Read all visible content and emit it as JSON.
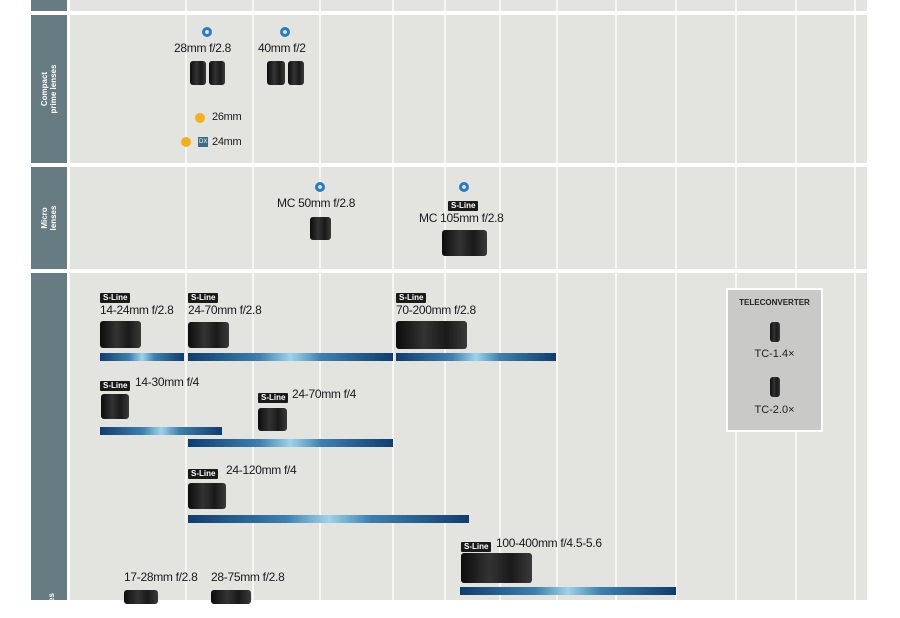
{
  "categories": [
    {
      "label": "Compact prime lenses"
    },
    {
      "label": "Micro lenses"
    },
    {
      "label": "lenses"
    }
  ],
  "badges": {
    "s_line": "S-Line",
    "dx": "DX"
  },
  "compact": {
    "lenses": [
      {
        "label": "28mm f/2.8"
      },
      {
        "label": "40mm f/2"
      }
    ],
    "upcoming": [
      {
        "label": "26mm"
      },
      {
        "label": "24mm"
      }
    ]
  },
  "micro": {
    "lenses": [
      {
        "label": "MC 50mm f/2.8"
      },
      {
        "label": "MC 105mm f/2.8"
      }
    ]
  },
  "zoom": {
    "lenses": [
      {
        "label": "14-24mm f/2.8"
      },
      {
        "label": "24-70mm f/2.8"
      },
      {
        "label": "70-200mm f/2.8"
      },
      {
        "label": "14-30mm f/4"
      },
      {
        "label": "24-70mm f/4"
      },
      {
        "label": "24-120mm f/4"
      },
      {
        "label": "100-400mm f/4.5-5.6"
      },
      {
        "label": "17-28mm f/2.8"
      },
      {
        "label": "28-75mm f/2.8"
      }
    ]
  },
  "teleconverter": {
    "title": "TELECONVERTER",
    "items": [
      {
        "label": "TC-1.4×"
      },
      {
        "label": "TC-2.0×"
      }
    ]
  },
  "colors": {
    "sidebar": "#667b82",
    "background": "#e3e3e0",
    "upcoming_dot": "#f3b01e",
    "bar_dark": "#0f3d6e",
    "bar_light": "#9fd3ea"
  }
}
